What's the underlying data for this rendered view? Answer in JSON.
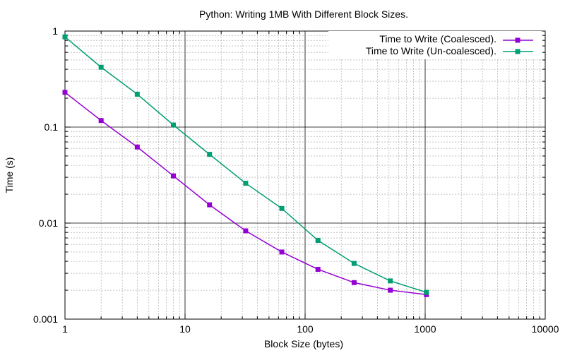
{
  "chart_data": {
    "type": "line",
    "title": "Python: Writing 1MB With Different Block Sizes.",
    "xlabel": "Block Size (bytes)",
    "ylabel": "Time (s)",
    "xscale": "log",
    "yscale": "log",
    "xlim": [
      1,
      10000
    ],
    "ylim": [
      0.001,
      1
    ],
    "x_tick_labels": [
      "1",
      "10",
      "100",
      "1000",
      "10000"
    ],
    "y_tick_labels": [
      "0.001",
      "0.01",
      "0.1",
      "1"
    ],
    "grid": true,
    "legend_position": "top-right",
    "x": [
      1,
      2,
      4,
      8,
      16,
      32,
      64,
      128,
      256,
      512,
      1024
    ],
    "series": [
      {
        "name": "Time to Write (Coalesced).",
        "color": "#9400d3",
        "marker": "square",
        "values": [
          0.23,
          0.117,
          0.062,
          0.031,
          0.0155,
          0.0083,
          0.005,
          0.0033,
          0.0024,
          0.002,
          0.0018
        ]
      },
      {
        "name": "Time to Write (Un-coalesced).",
        "color": "#009e73",
        "marker": "square",
        "values": [
          0.87,
          0.42,
          0.22,
          0.105,
          0.052,
          0.026,
          0.0142,
          0.0066,
          0.0038,
          0.0025,
          0.0019
        ]
      }
    ]
  }
}
